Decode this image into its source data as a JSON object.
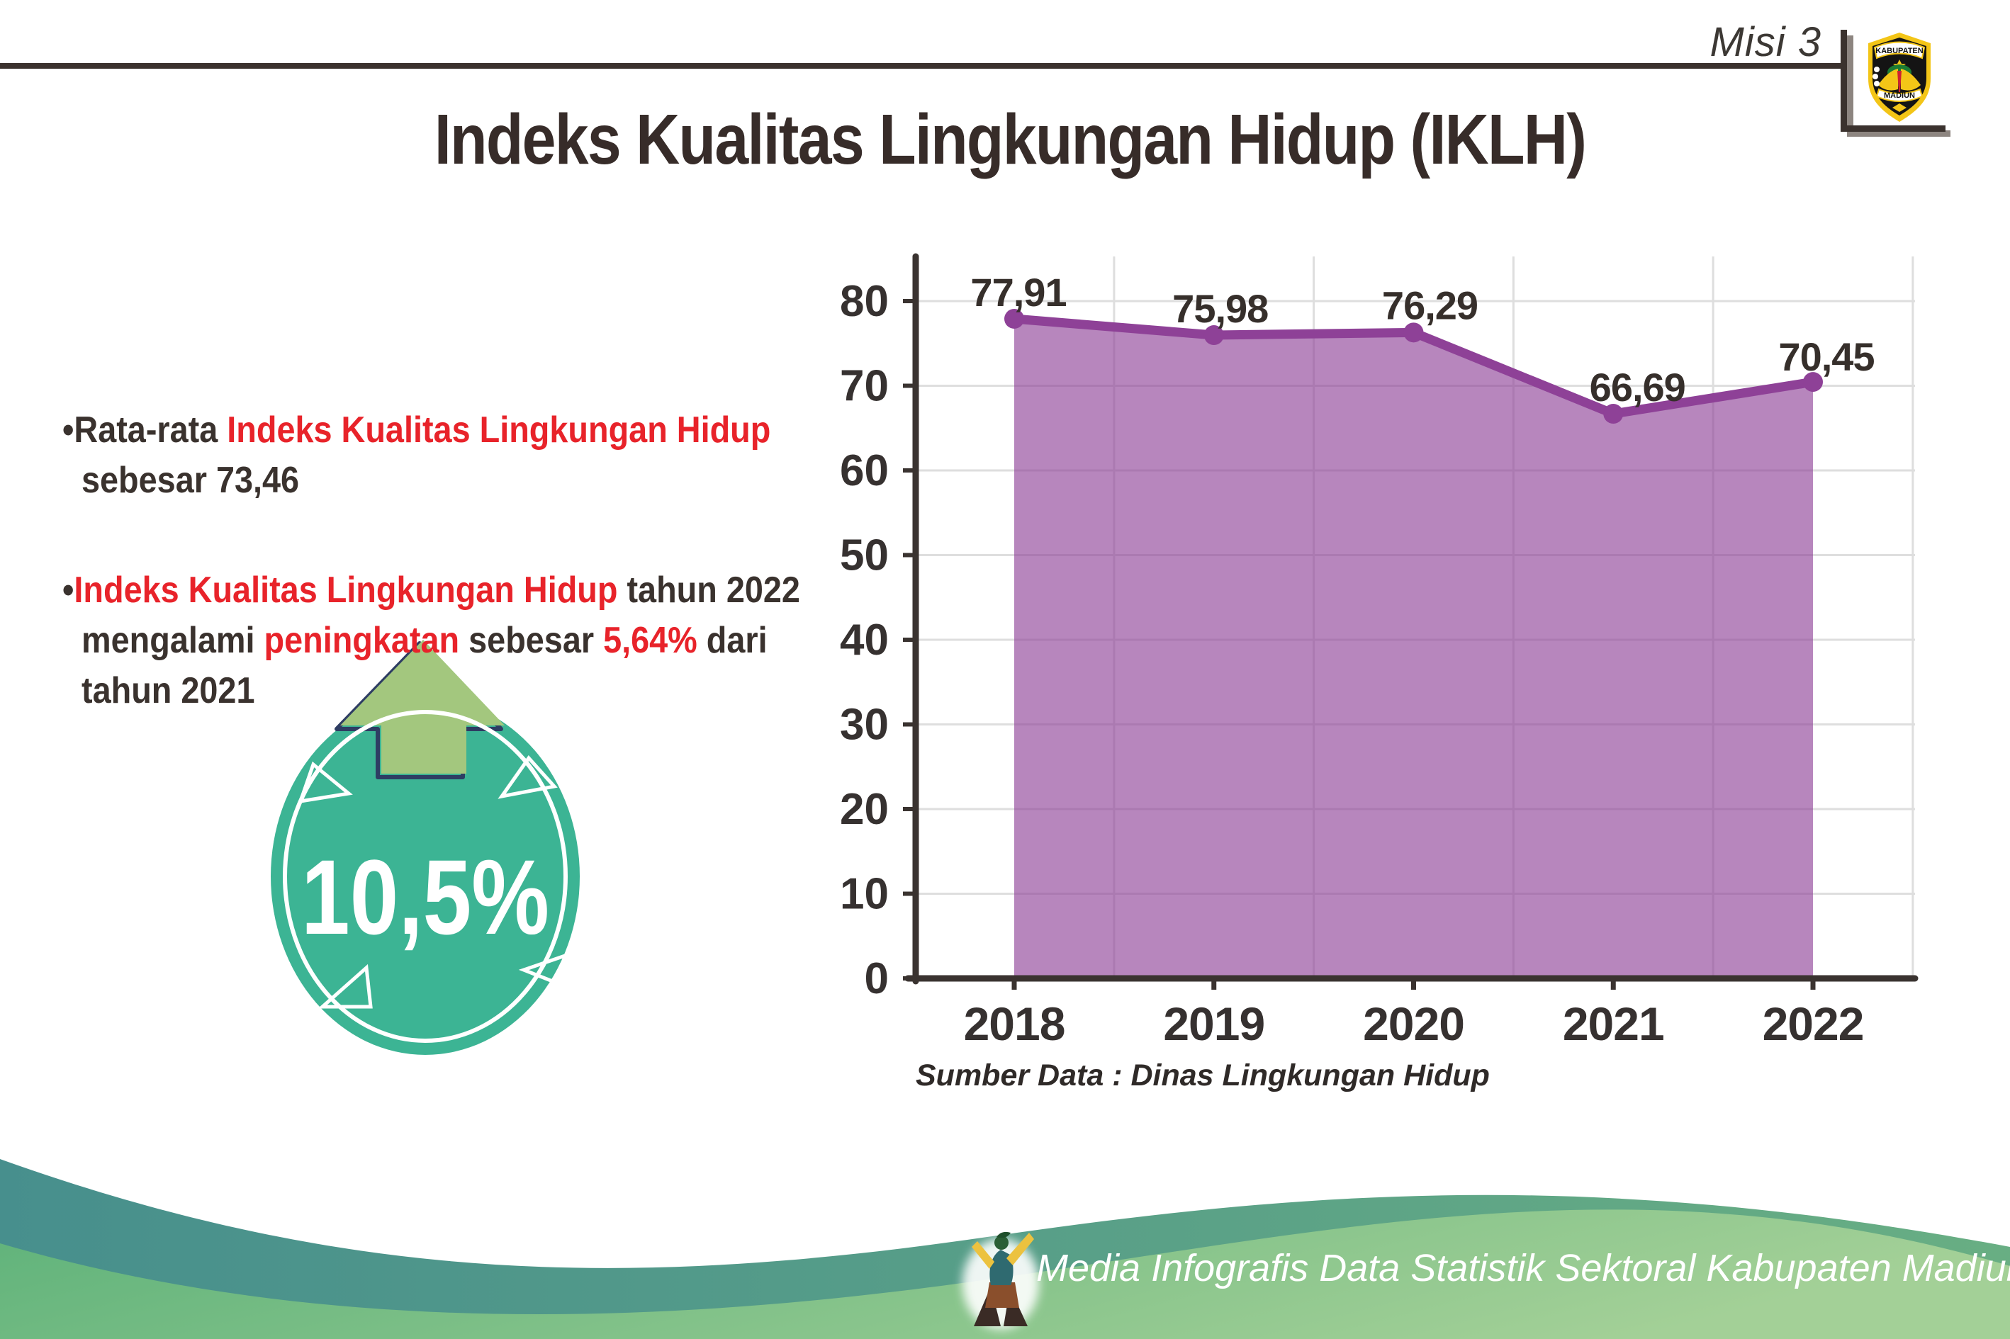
{
  "page": {
    "misi": "Misi 3",
    "title": "Indeks Kualitas Lingkungan Hidup (IKLH)"
  },
  "logo": {
    "top": "KABUPATEN",
    "bottom": "MADIUN"
  },
  "bullets": [
    {
      "lines": [
        [
          {
            "t": "Rata-rata ",
            "c": "dark"
          },
          {
            "t": "Indeks Kualitas Lingkungan Hidup",
            "c": "red"
          }
        ],
        [
          {
            "t": "sebesar 73,46",
            "c": "dark"
          }
        ]
      ]
    },
    {
      "lines": [
        [
          {
            "t": "Indeks Kualitas Lingkungan Hidup",
            "c": "red"
          },
          {
            "t": " tahun 2022",
            "c": "dark"
          }
        ],
        [
          {
            "t": "mengalami ",
            "c": "dark"
          },
          {
            "t": "peningkatan",
            "c": "red"
          },
          {
            "t": " sebesar ",
            "c": "dark"
          },
          {
            "t": "5,64%",
            "c": "red"
          },
          {
            "t": " dari",
            "c": "dark"
          }
        ],
        [
          {
            "t": "tahun 2021",
            "c": "dark"
          }
        ]
      ]
    }
  ],
  "badge": {
    "value": "10,5%"
  },
  "chart_data": {
    "type": "area",
    "title": "",
    "categories": [
      "2018",
      "2019",
      "2020",
      "2021",
      "2022"
    ],
    "values": [
      77.91,
      75.98,
      76.29,
      66.69,
      70.45
    ],
    "point_labels": [
      "77,91",
      "75,98",
      "76,29",
      "66,69",
      "70,45"
    ],
    "y_ticks": [
      0,
      10,
      20,
      30,
      40,
      50,
      60,
      70,
      80
    ],
    "ylim": [
      0,
      85
    ],
    "grid": true,
    "legend": false,
    "xlabel": "",
    "ylabel": "",
    "source": "Sumber Data : Dinas Lingkungan Hidup",
    "colors": {
      "line": "#8e4197",
      "fill": "rgba(142,65,151,0.64)",
      "marker": "#8e4197",
      "label": "#362f2b",
      "axis": "#3a3330",
      "grid": "#dedede",
      "tick_label": "#363130"
    }
  },
  "footer": {
    "caption": "Media Infografis Data Statistik Sektoral Kabupaten Madiun |"
  },
  "colors": {
    "red": "#e8232a",
    "dark": "#3a322e",
    "rule": "#3b322e",
    "badge_teal": "#3cb494",
    "arrow_green": "#a3c77e",
    "arrow_outline": "#2e3d63",
    "footer_teal_left": "#478f8d",
    "footer_teal_right": "#68ae83",
    "footer_green_left": "#5eb27a",
    "footer_green_right": "#a3d097"
  }
}
